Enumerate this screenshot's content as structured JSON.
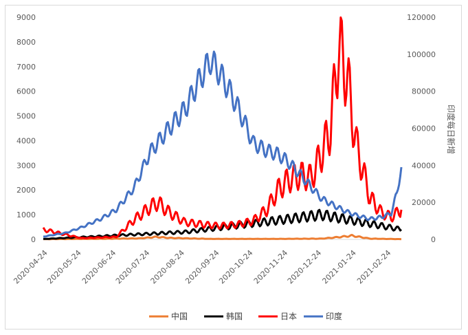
{
  "chart_data": {
    "type": "line",
    "title": "",
    "xlabel": "",
    "ylabel_left": "",
    "ylabel_right": "印度每日新增",
    "x_tick_labels": [
      "2020-04-24",
      "2020-05-24",
      "2020-06-24",
      "2020-07-24",
      "2020-08-24",
      "2020-09-24",
      "2020-10-24",
      "2020-11-24",
      "2020-12-24",
      "2021-01-24",
      "2021-02-24"
    ],
    "x_range": [
      "2020-04-20",
      "2021-03-05"
    ],
    "ylim_left": [
      0,
      9000
    ],
    "ylim_right": [
      0,
      120000
    ],
    "y_ticks_left": [
      0,
      1000,
      2000,
      3000,
      4000,
      5000,
      6000,
      7000,
      8000,
      9000
    ],
    "y_ticks_right": [
      0,
      20000,
      40000,
      60000,
      80000,
      100000,
      120000
    ],
    "grid": false,
    "legend_position": "bottom",
    "series": [
      {
        "name": "中国",
        "color": "#ED7D31",
        "axis": "left",
        "x": [
          "2020-04-20",
          "2020-06-01",
          "2020-07-15",
          "2020-07-30",
          "2020-08-10",
          "2020-09-15",
          "2020-11-15",
          "2020-12-24",
          "2021-01-10",
          "2021-01-20",
          "2021-02-05",
          "2021-03-05"
        ],
        "y": [
          10,
          20,
          40,
          100,
          60,
          20,
          20,
          30,
          100,
          150,
          30,
          10
        ]
      },
      {
        "name": "韩国",
        "color": "#000000",
        "axis": "left",
        "x": [
          "2020-04-20",
          "2020-08-25",
          "2020-12-24",
          "2021-03-05"
        ],
        "y": [
          15,
          300,
          1000,
          400
        ]
      },
      {
        "name": "日本",
        "color": "#FF0000",
        "axis": "left",
        "x": [
          "2020-04-20",
          "2020-05-24",
          "2020-06-24",
          "2020-07-10",
          "2020-07-24",
          "2020-07-31",
          "2020-08-10",
          "2020-08-24",
          "2020-09-10",
          "2020-09-24",
          "2020-10-10",
          "2020-10-24",
          "2020-11-05",
          "2020-11-15",
          "2020-11-24",
          "2020-12-05",
          "2020-12-15",
          "2020-12-24",
          "2021-01-01",
          "2021-01-08",
          "2021-01-15",
          "2021-01-24",
          "2021-02-05",
          "2021-02-15",
          "2021-02-24",
          "2021-03-05"
        ],
        "y": [
          400,
          50,
          100,
          800,
          1300,
          1500,
          1100,
          700,
          600,
          550,
          600,
          750,
          1200,
          2000,
          2400,
          2600,
          2500,
          3500,
          4500,
          7800,
          6800,
          3800,
          1700,
          1100,
          900,
          1200
        ]
      },
      {
        "name": "印度",
        "color": "#4472C4",
        "axis": "right",
        "x": [
          "2020-04-20",
          "2020-05-10",
          "2020-05-24",
          "2020-06-10",
          "2020-06-24",
          "2020-07-10",
          "2020-07-24",
          "2020-08-10",
          "2020-08-24",
          "2020-09-05",
          "2020-09-16",
          "2020-09-24",
          "2020-10-05",
          "2020-10-15",
          "2020-10-24",
          "2020-11-05",
          "2020-11-15",
          "2020-11-24",
          "2020-12-05",
          "2020-12-15",
          "2020-12-24",
          "2021-01-05",
          "2021-01-15",
          "2021-01-24",
          "2021-02-05",
          "2021-02-15",
          "2021-02-24",
          "2021-03-01",
          "2021-03-05"
        ],
        "y": [
          1500,
          3500,
          6500,
          11000,
          16000,
          28000,
          47000,
          60000,
          70000,
          85000,
          97000,
          90000,
          78000,
          65000,
          52000,
          48000,
          46000,
          42000,
          35000,
          28000,
          22000,
          18000,
          15000,
          13000,
          11000,
          12000,
          14000,
          25000,
          39000
        ]
      }
    ]
  }
}
